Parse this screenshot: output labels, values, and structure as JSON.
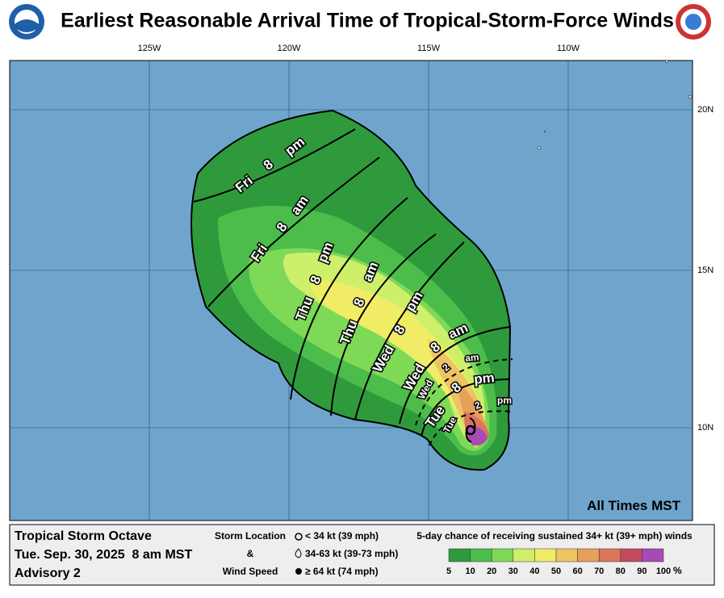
{
  "header": {
    "title": "Earliest Reasonable Arrival Time of Tropical-Storm-Force Winds"
  },
  "map": {
    "longitude_labels": [
      "125W",
      "120W",
      "115W",
      "110W"
    ],
    "latitude_labels": [
      "20N",
      "15N",
      "10N"
    ],
    "contour_labels": [
      [
        "Fri",
        "8",
        "pm"
      ],
      [
        "Fri",
        "8",
        "am"
      ],
      [
        "Thu",
        "8",
        "pm"
      ],
      [
        "Thu",
        "8",
        "am"
      ],
      [
        "Wed",
        "8",
        "pm"
      ],
      [
        "Wed",
        "8",
        "am"
      ],
      [
        "Wed",
        "2",
        "am"
      ],
      [
        "Tue",
        "8",
        "pm"
      ],
      [
        "Tue",
        "2",
        "pm"
      ]
    ],
    "note": "All Times MST"
  },
  "footer": {
    "storm": "Tropical Storm Octave",
    "time": "Tue. Sep. 30, 2025  8 am MST",
    "advisory": "Advisory 2",
    "symbol_key": {
      "heading": [
        "Storm Location",
        "&",
        "Wind Speed"
      ],
      "items": [
        "< 34 kt (39 mph)",
        "34-63 kt (39-73 mph)",
        "≥ 64 kt (74 mph)"
      ]
    },
    "legend": {
      "title": "5-day chance of receiving sustained 34+ kt (39+ mph) winds",
      "colors": [
        "#2f9a3c",
        "#4cbd4a",
        "#7ed957",
        "#cdef6a",
        "#f0ec66",
        "#ecc463",
        "#e5a05a",
        "#d9765d",
        "#c54a5e",
        "#a54bb5"
      ],
      "labels": [
        "5",
        "10",
        "20",
        "30",
        "40",
        "50",
        "60",
        "70",
        "80",
        "90",
        "100"
      ],
      "unit": "%"
    }
  }
}
